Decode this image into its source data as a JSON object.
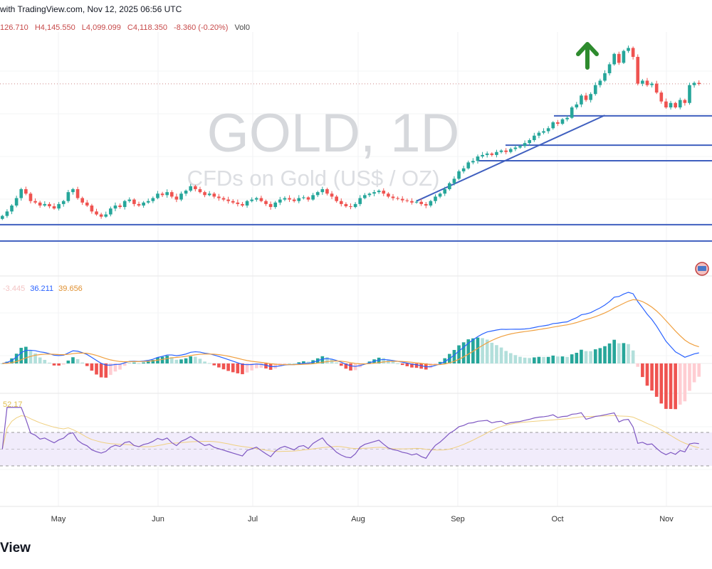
{
  "header": {
    "caption": "with TradingView.com, Nov 12, 2025 06:56 UTC"
  },
  "ohlc": {
    "open": "126.710",
    "high": "H4,145.550",
    "low": "L4,099.099",
    "close": "C4,118.350",
    "change": "-8.360 (-0.20%)",
    "volume": "Vol0"
  },
  "watermark": {
    "title": "GOLD, 1D",
    "subtitle": "CFDs on Gold (US$ / OZ)"
  },
  "macd_legend": {
    "histogram": "-3.445",
    "macd": "36.211",
    "signal": "39.656"
  },
  "rsi_legend": {
    "value": "52.17"
  },
  "brand": {
    "text": "View"
  },
  "colors": {
    "up": "#26a69a",
    "down": "#ef5350",
    "lines": "#3f5fbf",
    "macd": "#2962ff",
    "signal": "#f0a040",
    "rsi": "#7e57c2",
    "arrow": "#2e8b2e"
  },
  "chart_data": {
    "type": "candlestick",
    "symbol": "GOLD",
    "interval": "1D",
    "x_labels": [
      "May",
      "Jun",
      "Jul",
      "Aug",
      "Sep",
      "Oct",
      "Nov"
    ],
    "closes": [
      3230,
      3260,
      3300,
      3350,
      3410,
      3380,
      3330,
      3320,
      3300,
      3310,
      3295,
      3280,
      3310,
      3330,
      3390,
      3410,
      3350,
      3320,
      3300,
      3260,
      3240,
      3225,
      3240,
      3280,
      3300,
      3290,
      3330,
      3340,
      3310,
      3300,
      3320,
      3330,
      3350,
      3380,
      3370,
      3390,
      3360,
      3340,
      3380,
      3400,
      3430,
      3410,
      3390,
      3370,
      3380,
      3360,
      3350,
      3340,
      3330,
      3320,
      3310,
      3300,
      3330,
      3340,
      3350,
      3330,
      3310,
      3290,
      3320,
      3340,
      3350,
      3340,
      3330,
      3350,
      3355,
      3340,
      3370,
      3390,
      3410,
      3380,
      3360,
      3330,
      3310,
      3295,
      3290,
      3310,
      3350,
      3370,
      3380,
      3390,
      3400,
      3380,
      3360,
      3350,
      3345,
      3335,
      3330,
      3320,
      3325,
      3310,
      3300,
      3330,
      3360,
      3380,
      3410,
      3450,
      3480,
      3530,
      3550,
      3590,
      3600,
      3630,
      3640,
      3650,
      3640,
      3660,
      3670,
      3660,
      3680,
      3690,
      3700,
      3720,
      3740,
      3770,
      3790,
      3800,
      3820,
      3860,
      3850,
      3880,
      3890,
      3960,
      3980,
      4040,
      4010,
      4050,
      4110,
      4140,
      4190,
      4250,
      4320,
      4260,
      4340,
      4360,
      4300,
      4120,
      4140,
      4110,
      4120,
      4060,
      4000,
      3960,
      3990,
      3960,
      4010,
      3990,
      4110,
      4125,
      4118
    ],
    "current_price": 4118.35,
    "price_range": [
      3000,
      4420
    ],
    "horizontal_levels": [
      3903,
      3706,
      3601,
      3171,
      3061
    ],
    "trendline": {
      "from_index": 88,
      "from_price": 3330,
      "to_index": 128,
      "to_price": 3907
    },
    "indicators": {
      "macd": [
        12,
        26,
        9
      ],
      "rsi": {
        "length": 14,
        "upper": 70,
        "lower": 30
      }
    }
  }
}
